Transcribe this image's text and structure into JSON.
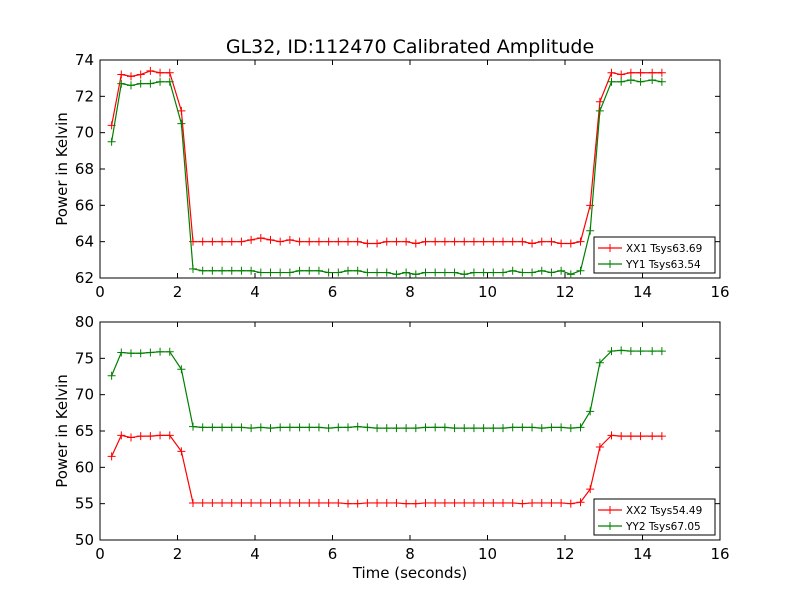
{
  "figure": {
    "title": "GL32, ID:112470 Calibrated Amplitude"
  },
  "chart_data": [
    {
      "type": "line",
      "title": "GL32, ID:112470 Calibrated Amplitude",
      "xlabel": "",
      "ylabel": "Power in Kelvin",
      "xlim": [
        0,
        16
      ],
      "ylim": [
        62,
        74
      ],
      "xticks": [
        0,
        2,
        4,
        6,
        8,
        10,
        12,
        14,
        16
      ],
      "yticks": [
        62,
        64,
        66,
        68,
        70,
        72,
        74
      ],
      "legend": "lower-right",
      "series": [
        {
          "name": "XX1 Tsys63.69",
          "color": "#ff0000",
          "x": [
            0.3,
            0.55,
            0.8,
            1.05,
            1.3,
            1.55,
            1.8,
            2.1,
            2.4,
            2.65,
            2.9,
            3.15,
            3.4,
            3.65,
            3.9,
            4.15,
            4.4,
            4.65,
            4.9,
            5.15,
            5.4,
            5.65,
            5.9,
            6.15,
            6.4,
            6.65,
            6.9,
            7.15,
            7.4,
            7.65,
            7.9,
            8.15,
            8.4,
            8.65,
            8.9,
            9.15,
            9.4,
            9.65,
            9.9,
            10.15,
            10.4,
            10.65,
            10.9,
            11.15,
            11.4,
            11.65,
            11.9,
            12.15,
            12.4,
            12.65,
            12.9,
            13.2,
            13.45,
            13.7,
            13.95,
            14.25,
            14.5
          ],
          "y": [
            70.4,
            73.2,
            73.1,
            73.2,
            73.4,
            73.3,
            73.3,
            71.2,
            64.0,
            64.0,
            64.0,
            64.0,
            64.0,
            64.0,
            64.1,
            64.2,
            64.1,
            64.0,
            64.1,
            64.0,
            64.0,
            64.0,
            64.0,
            64.0,
            64.0,
            64.0,
            63.9,
            63.9,
            64.0,
            64.0,
            64.0,
            63.9,
            64.0,
            64.0,
            64.0,
            64.0,
            64.0,
            64.0,
            64.0,
            64.0,
            64.0,
            64.0,
            64.0,
            63.9,
            64.0,
            64.0,
            63.9,
            63.9,
            64.0,
            66.0,
            71.7,
            73.3,
            73.2,
            73.3,
            73.3,
            73.3,
            73.3
          ]
        },
        {
          "name": "YY1 Tsys63.54",
          "color": "#008000",
          "x": [
            0.3,
            0.55,
            0.8,
            1.05,
            1.3,
            1.55,
            1.8,
            2.1,
            2.4,
            2.65,
            2.9,
            3.15,
            3.4,
            3.65,
            3.9,
            4.15,
            4.4,
            4.65,
            4.9,
            5.15,
            5.4,
            5.65,
            5.9,
            6.15,
            6.4,
            6.65,
            6.9,
            7.15,
            7.4,
            7.65,
            7.9,
            8.15,
            8.4,
            8.65,
            8.9,
            9.15,
            9.4,
            9.65,
            9.9,
            10.15,
            10.4,
            10.65,
            10.9,
            11.15,
            11.4,
            11.65,
            11.9,
            12.15,
            12.4,
            12.65,
            12.9,
            13.2,
            13.45,
            13.7,
            13.95,
            14.25,
            14.5
          ],
          "y": [
            69.5,
            72.7,
            72.6,
            72.7,
            72.7,
            72.8,
            72.8,
            70.5,
            62.5,
            62.4,
            62.4,
            62.4,
            62.4,
            62.4,
            62.4,
            62.3,
            62.3,
            62.3,
            62.3,
            62.4,
            62.4,
            62.4,
            62.3,
            62.3,
            62.4,
            62.4,
            62.3,
            62.3,
            62.3,
            62.2,
            62.3,
            62.2,
            62.3,
            62.3,
            62.3,
            62.3,
            62.2,
            62.3,
            62.3,
            62.3,
            62.3,
            62.4,
            62.3,
            62.3,
            62.4,
            62.3,
            62.4,
            62.2,
            62.4,
            64.6,
            71.2,
            72.8,
            72.8,
            72.9,
            72.8,
            72.9,
            72.8
          ]
        }
      ]
    },
    {
      "type": "line",
      "title": "",
      "xlabel": "Time (seconds)",
      "ylabel": "Power in Kelvin",
      "xlim": [
        0,
        16
      ],
      "ylim": [
        50,
        80
      ],
      "xticks": [
        0,
        2,
        4,
        6,
        8,
        10,
        12,
        14,
        16
      ],
      "yticks": [
        50,
        55,
        60,
        65,
        70,
        75,
        80
      ],
      "legend": "lower-right",
      "series": [
        {
          "name": "XX2 Tsys54.49",
          "color": "#ff0000",
          "x": [
            0.3,
            0.55,
            0.8,
            1.05,
            1.3,
            1.55,
            1.8,
            2.1,
            2.4,
            2.65,
            2.9,
            3.15,
            3.4,
            3.65,
            3.9,
            4.15,
            4.4,
            4.65,
            4.9,
            5.15,
            5.4,
            5.65,
            5.9,
            6.15,
            6.4,
            6.65,
            6.9,
            7.15,
            7.4,
            7.65,
            7.9,
            8.15,
            8.4,
            8.65,
            8.9,
            9.15,
            9.4,
            9.65,
            9.9,
            10.15,
            10.4,
            10.65,
            10.9,
            11.15,
            11.4,
            11.65,
            11.9,
            12.15,
            12.4,
            12.65,
            12.9,
            13.2,
            13.45,
            13.7,
            13.95,
            14.25,
            14.5
          ],
          "y": [
            61.5,
            64.4,
            64.1,
            64.3,
            64.3,
            64.4,
            64.4,
            62.2,
            55.1,
            55.1,
            55.1,
            55.1,
            55.1,
            55.1,
            55.1,
            55.1,
            55.1,
            55.1,
            55.1,
            55.1,
            55.1,
            55.1,
            55.1,
            55.1,
            55.0,
            55.0,
            55.1,
            55.1,
            55.1,
            55.1,
            55.0,
            55.0,
            55.1,
            55.1,
            55.1,
            55.1,
            55.1,
            55.1,
            55.1,
            55.1,
            55.1,
            55.1,
            55.0,
            55.1,
            55.1,
            55.1,
            55.1,
            55.0,
            55.2,
            57.0,
            62.8,
            64.4,
            64.3,
            64.3,
            64.3,
            64.3,
            64.3
          ]
        },
        {
          "name": "YY2 Tsys67.05",
          "color": "#008000",
          "x": [
            0.3,
            0.55,
            0.8,
            1.05,
            1.3,
            1.55,
            1.8,
            2.1,
            2.4,
            2.65,
            2.9,
            3.15,
            3.4,
            3.65,
            3.9,
            4.15,
            4.4,
            4.65,
            4.9,
            5.15,
            5.4,
            5.65,
            5.9,
            6.15,
            6.4,
            6.65,
            6.9,
            7.15,
            7.4,
            7.65,
            7.9,
            8.15,
            8.4,
            8.65,
            8.9,
            9.15,
            9.4,
            9.65,
            9.9,
            10.15,
            10.4,
            10.65,
            10.9,
            11.15,
            11.4,
            11.65,
            11.9,
            12.15,
            12.4,
            12.65,
            12.9,
            13.2,
            13.45,
            13.7,
            13.95,
            14.25,
            14.5
          ],
          "y": [
            72.6,
            75.8,
            75.7,
            75.7,
            75.8,
            75.9,
            75.9,
            73.5,
            65.6,
            65.5,
            65.5,
            65.5,
            65.5,
            65.5,
            65.4,
            65.5,
            65.4,
            65.5,
            65.5,
            65.5,
            65.5,
            65.5,
            65.4,
            65.5,
            65.5,
            65.6,
            65.5,
            65.4,
            65.4,
            65.4,
            65.4,
            65.4,
            65.5,
            65.5,
            65.5,
            65.4,
            65.4,
            65.4,
            65.4,
            65.4,
            65.4,
            65.5,
            65.5,
            65.5,
            65.4,
            65.5,
            65.5,
            65.4,
            65.5,
            67.7,
            74.4,
            76.0,
            76.1,
            76.0,
            76.0,
            76.0,
            76.0
          ]
        }
      ]
    }
  ]
}
